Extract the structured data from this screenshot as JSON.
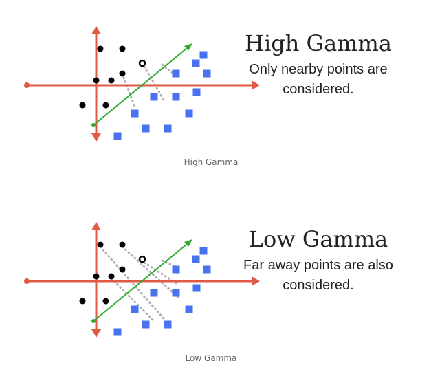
{
  "colors": {
    "axis": "#e05a44",
    "line": "#2eaa2e",
    "dot": "#000000",
    "square": "#4a72f0",
    "dotted": "#b0b0b0"
  },
  "panels": [
    {
      "title": "High Gamma",
      "description": "Only nearby points are\nconsidered.",
      "caption": "High Gamma"
    },
    {
      "title": "Low Gamma",
      "description": "Far away points are also\nconsidered.",
      "caption": "Low Gamma"
    }
  ]
}
